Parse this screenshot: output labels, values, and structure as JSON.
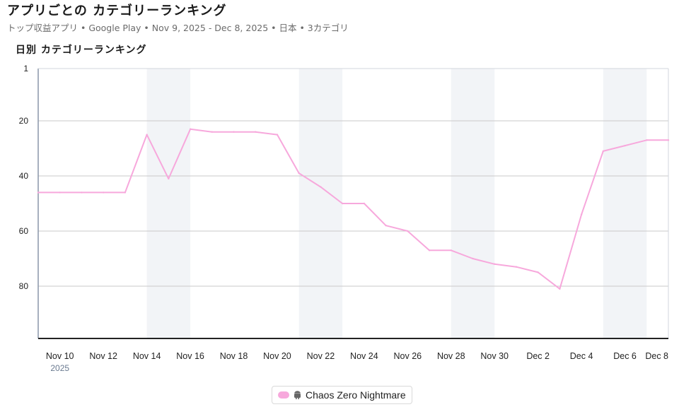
{
  "header": {
    "title": "アプリごとの カテゴリーランキング",
    "subtitle": "トップ収益アプリ • Google Play • Nov 9, 2025 - Dec 8, 2025 • 日本 • 3カテゴリ"
  },
  "chart_data": {
    "type": "line",
    "title": "日別 カテゴリーランキング",
    "y_inverted": true,
    "ylim": [
      1,
      99
    ],
    "y_ticks": [
      1,
      20,
      40,
      60,
      80
    ],
    "x_start": "Nov 9",
    "x_ticks": [
      {
        "label": "Nov 10",
        "day": 10
      },
      {
        "label": "Nov 12",
        "day": 12
      },
      {
        "label": "Nov 14",
        "day": 14
      },
      {
        "label": "Nov 16",
        "day": 16
      },
      {
        "label": "Nov 18",
        "day": 18
      },
      {
        "label": "Nov 20",
        "day": 20
      },
      {
        "label": "Nov 22",
        "day": 22
      },
      {
        "label": "Nov 24",
        "day": 24
      },
      {
        "label": "Nov 26",
        "day": 26
      },
      {
        "label": "Nov 28",
        "day": 28
      },
      {
        "label": "Nov 30",
        "day": 30
      },
      {
        "label": "Dec 2",
        "day": 32
      },
      {
        "label": "Dec 4",
        "day": 34
      },
      {
        "label": "Dec 6",
        "day": 36
      },
      {
        "label": "Dec 8",
        "day": 38
      }
    ],
    "year_label": "2025",
    "weekend_bands": [
      [
        14,
        16
      ],
      [
        21,
        23
      ],
      [
        28,
        30
      ],
      [
        35,
        37
      ]
    ],
    "series": [
      {
        "name": "Chaos Zero Nightmare",
        "color": "#f7a8dc",
        "x": [
          9,
          10,
          11,
          12,
          13,
          14,
          15,
          16,
          17,
          18,
          19,
          20,
          21,
          22,
          23,
          24,
          25,
          26,
          27,
          28,
          29,
          30,
          31,
          32,
          33,
          34,
          35,
          36,
          37,
          38
        ],
        "values": [
          46,
          46,
          46,
          46,
          46,
          25,
          41,
          23,
          24,
          24,
          24,
          25,
          39,
          44,
          50,
          50,
          58,
          60,
          67,
          67,
          70,
          72,
          73,
          75,
          81,
          54,
          31,
          29,
          27,
          27
        ]
      }
    ]
  },
  "legend": {
    "icon": "android-icon",
    "label": "Chaos Zero Nightmare"
  }
}
